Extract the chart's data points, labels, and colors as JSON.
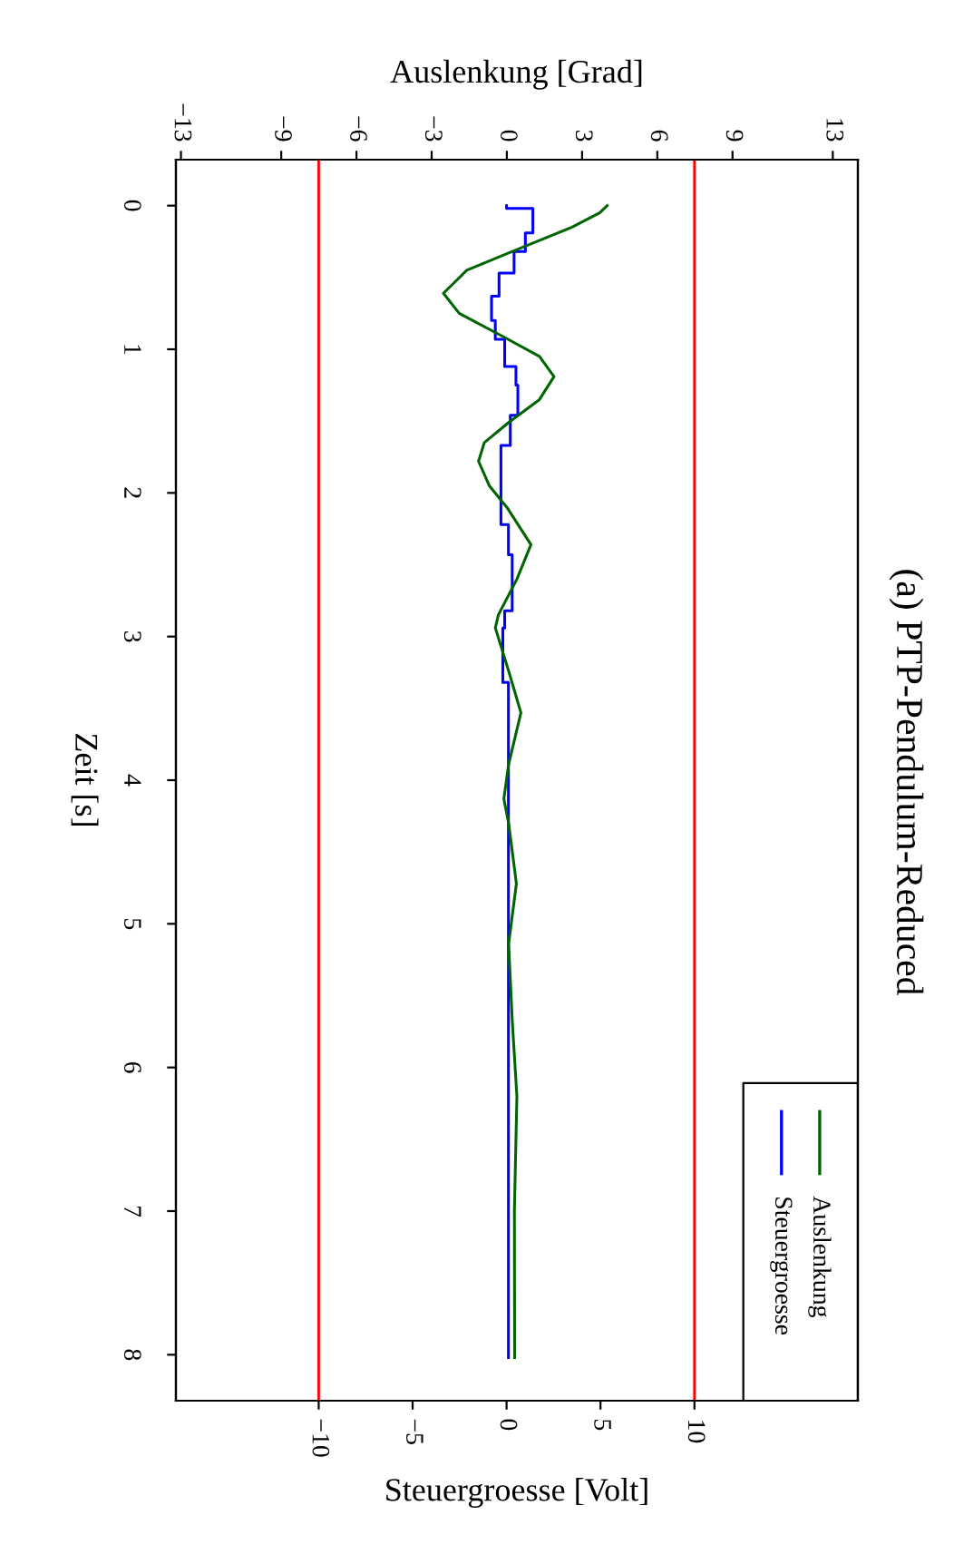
{
  "chart_data": {
    "type": "line",
    "title": "(a) PTP-Pendulum-Reduced",
    "orientation": "horizontal",
    "ylabel": "Zeit [s]",
    "xlabel": "Steuergroesse [Volt]",
    "x2label": "Auslenkung [Grad]",
    "ylim": [
      8.32,
      -0.32
    ],
    "yticks": [
      0,
      1,
      2,
      3,
      4,
      5,
      6,
      7,
      8
    ],
    "xlim": [
      -17.6,
      18.7
    ],
    "xticks": [
      -10,
      -5,
      0,
      5,
      10
    ],
    "x2lim": [
      -13.2,
      14.0
    ],
    "x2ticks": [
      -13,
      -9,
      -6,
      -3,
      0,
      3,
      6,
      9,
      13
    ],
    "series": [
      {
        "name": "Auslenkung",
        "color": "#006400",
        "axis": "x2",
        "x": [
          0,
          0.05,
          0.15,
          0.32,
          0.45,
          0.61,
          0.75,
          0.91,
          1.05,
          1.19,
          1.35,
          1.51,
          1.65,
          1.78,
          1.95,
          2.1,
          2.36,
          2.6,
          2.85,
          2.94,
          3.24,
          3.53,
          3.89,
          4.13,
          4.3,
          4.72,
          5.14,
          5.69,
          6.2,
          7.0,
          8.02
        ],
        "values": [
          4.0,
          3.7,
          2.6,
          0.2,
          -1.6,
          -2.53,
          -1.9,
          -0.17,
          1.3,
          1.88,
          1.3,
          0.07,
          -0.9,
          -1.13,
          -0.7,
          0.0,
          0.96,
          0.4,
          -0.34,
          -0.46,
          0.07,
          0.56,
          0.07,
          -0.12,
          0.07,
          0.38,
          0.07,
          0.22,
          0.4,
          0.3,
          0.31
        ]
      },
      {
        "name": "Steuergroesse",
        "color": "#0000ff",
        "type": "step",
        "x": [
          0,
          0.02,
          0.19,
          0.32,
          0.47,
          0.63,
          0.8,
          0.93,
          1.12,
          1.25,
          1.46,
          1.67,
          1.92,
          2.22,
          2.43,
          2.82,
          2.94,
          3.32,
          3.98,
          5.0,
          6.0,
          7.0,
          8.02
        ],
        "values": [
          0,
          1.4,
          1.0,
          0.4,
          -0.4,
          -0.8,
          -0.6,
          -0.1,
          0.5,
          0.6,
          0.2,
          -0.3,
          -0.3,
          0.1,
          0.3,
          -0.1,
          -0.2,
          0.1,
          0.1,
          0.1,
          0.1,
          0.1,
          0.1
        ]
      }
    ],
    "ref_lines": [
      {
        "axis": "x",
        "value": -10,
        "color": "#ff0000"
      },
      {
        "axis": "x",
        "value": 10,
        "color": "#ff0000"
      }
    ],
    "legend": "bottom right",
    "grid": false,
    "marker": "none",
    "line_style": "solid"
  }
}
